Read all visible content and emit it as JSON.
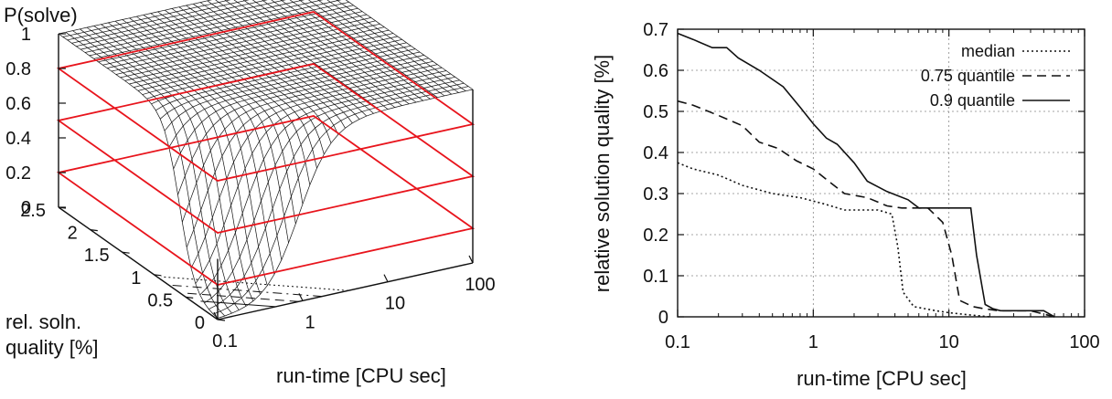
{
  "chart_data": [
    {
      "type": "surface3d",
      "zlabel": "P(solve)",
      "zticks": [
        "1",
        "0.8",
        "0.6",
        "0.4",
        "0.2",
        "0"
      ],
      "ylabel": "rel. soln.\nquality [%]",
      "ylabel_lines": [
        "rel. soln.",
        "quality [%]"
      ],
      "yticks": [
        "2.5",
        "2",
        "1.5",
        "1",
        "0.5",
        "0"
      ],
      "xlabel": "run-time [CPU sec]",
      "xticks": [
        "0.1",
        "1",
        "10",
        "100"
      ],
      "xscale": "log",
      "zlim": [
        0,
        1
      ],
      "ylim": [
        0,
        2.5
      ],
      "xlim": [
        0.1,
        100
      ],
      "planes_z": [
        0.2,
        0.5,
        0.8
      ],
      "plane_color": "#e8141c",
      "surface_color": "#111111"
    },
    {
      "type": "line",
      "xlabel": "run-time [CPU sec]",
      "ylabel": "relative solution quality [%]",
      "xscale": "log",
      "xlim": [
        0.1,
        100
      ],
      "ylim": [
        0,
        0.7
      ],
      "xticks": [
        "0.1",
        "1",
        "10",
        "100"
      ],
      "yticks": [
        "0",
        "0.1",
        "0.2",
        "0.3",
        "0.4",
        "0.5",
        "0.6",
        "0.7"
      ],
      "grid": true,
      "legend_position": "top-right",
      "series": [
        {
          "name": "median",
          "style": "dotted",
          "points": [
            [
              0.1,
              0.375
            ],
            [
              0.13,
              0.36
            ],
            [
              0.2,
              0.345
            ],
            [
              0.3,
              0.32
            ],
            [
              0.5,
              0.3
            ],
            [
              0.8,
              0.29
            ],
            [
              1.2,
              0.275
            ],
            [
              1.7,
              0.26
            ],
            [
              3,
              0.26
            ],
            [
              3.8,
              0.25
            ],
            [
              4.2,
              0.17
            ],
            [
              4.6,
              0.06
            ],
            [
              5.5,
              0.025
            ],
            [
              8,
              0.015
            ],
            [
              10,
              0.01
            ],
            [
              14,
              0.005
            ],
            [
              20,
              0
            ]
          ]
        },
        {
          "name": "0.75 quantile",
          "style": "dashed",
          "points": [
            [
              0.1,
              0.525
            ],
            [
              0.13,
              0.515
            ],
            [
              0.2,
              0.49
            ],
            [
              0.3,
              0.465
            ],
            [
              0.4,
              0.425
            ],
            [
              0.55,
              0.41
            ],
            [
              0.75,
              0.38
            ],
            [
              1,
              0.36
            ],
            [
              1.3,
              0.33
            ],
            [
              1.7,
              0.3
            ],
            [
              2.5,
              0.29
            ],
            [
              3.5,
              0.27
            ],
            [
              4.5,
              0.265
            ],
            [
              7,
              0.265
            ],
            [
              9,
              0.23
            ],
            [
              10.5,
              0.15
            ],
            [
              12,
              0.04
            ],
            [
              15,
              0.025
            ],
            [
              18,
              0.02
            ],
            [
              23,
              0.015
            ],
            [
              40,
              0.015
            ],
            [
              60,
              0
            ]
          ]
        },
        {
          "name": "0.9 quantile",
          "style": "solid",
          "points": [
            [
              0.1,
              0.69
            ],
            [
              0.13,
              0.675
            ],
            [
              0.18,
              0.655
            ],
            [
              0.23,
              0.655
            ],
            [
              0.28,
              0.63
            ],
            [
              0.4,
              0.6
            ],
            [
              0.6,
              0.56
            ],
            [
              0.8,
              0.51
            ],
            [
              1,
              0.47
            ],
            [
              1.25,
              0.435
            ],
            [
              1.5,
              0.42
            ],
            [
              2,
              0.375
            ],
            [
              2.5,
              0.33
            ],
            [
              3.5,
              0.305
            ],
            [
              5,
              0.285
            ],
            [
              6,
              0.265
            ],
            [
              7,
              0.265
            ],
            [
              12,
              0.265
            ],
            [
              14.5,
              0.265
            ],
            [
              16,
              0.15
            ],
            [
              18.5,
              0.03
            ],
            [
              21,
              0.02
            ],
            [
              24,
              0.015
            ],
            [
              50,
              0.015
            ],
            [
              60,
              0
            ]
          ]
        }
      ]
    }
  ]
}
